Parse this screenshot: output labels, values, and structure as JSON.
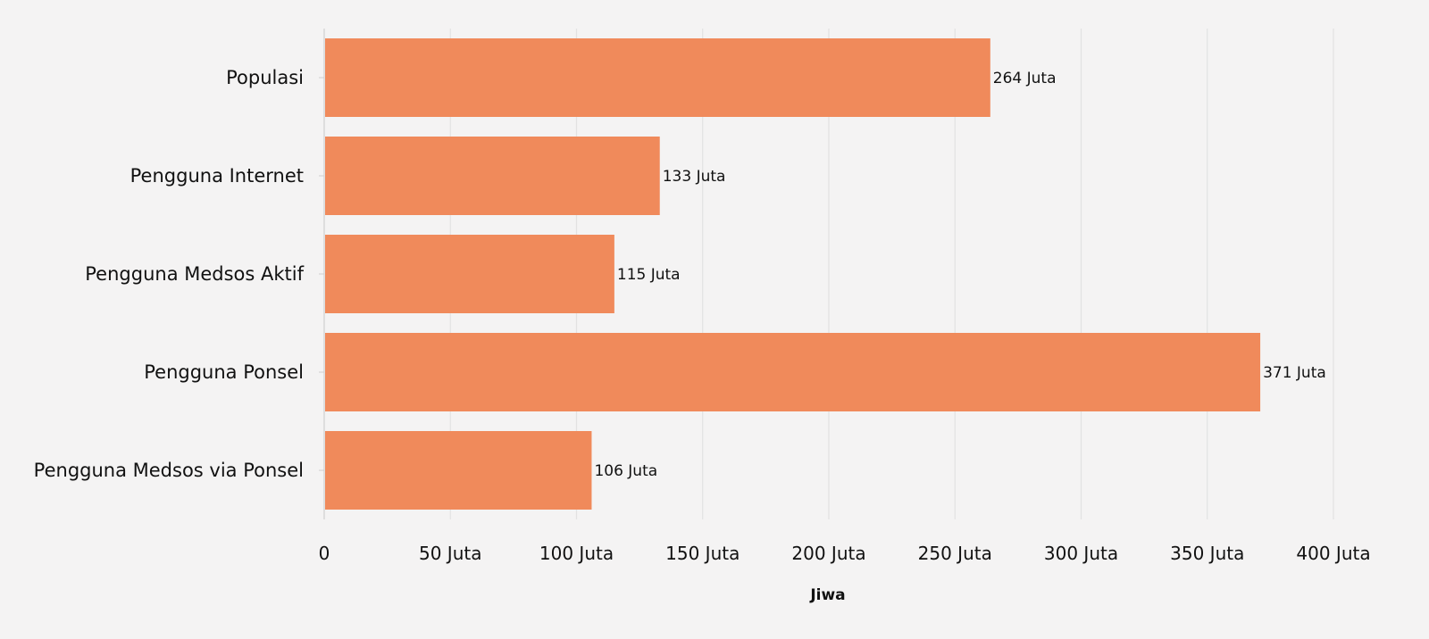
{
  "chart_data": {
    "type": "bar",
    "orientation": "horizontal",
    "categories": [
      "Populasi",
      "Pengguna Internet",
      "Pengguna Medsos Aktif",
      "Pengguna Ponsel",
      "Pengguna Medsos via Ponsel"
    ],
    "values": [
      264,
      133,
      115,
      371,
      106
    ],
    "data_labels": [
      "264 Juta",
      "133 Juta",
      "115 Juta",
      "371 Juta",
      "106 Juta"
    ],
    "xlabel": "Jiwa",
    "xlim": [
      0,
      400
    ],
    "x_ticks": [
      0,
      50,
      100,
      150,
      200,
      250,
      300,
      350,
      400
    ],
    "x_tick_labels": [
      "0",
      "50 Juta",
      "100 Juta",
      "150 Juta",
      "200 Juta",
      "250 Juta",
      "300 Juta",
      "350 Juta",
      "400 Juta"
    ],
    "grid": true,
    "colors": {
      "bar": "#f08a5b",
      "background": "#f4f3f3",
      "grid": "#e2e2e2"
    }
  }
}
